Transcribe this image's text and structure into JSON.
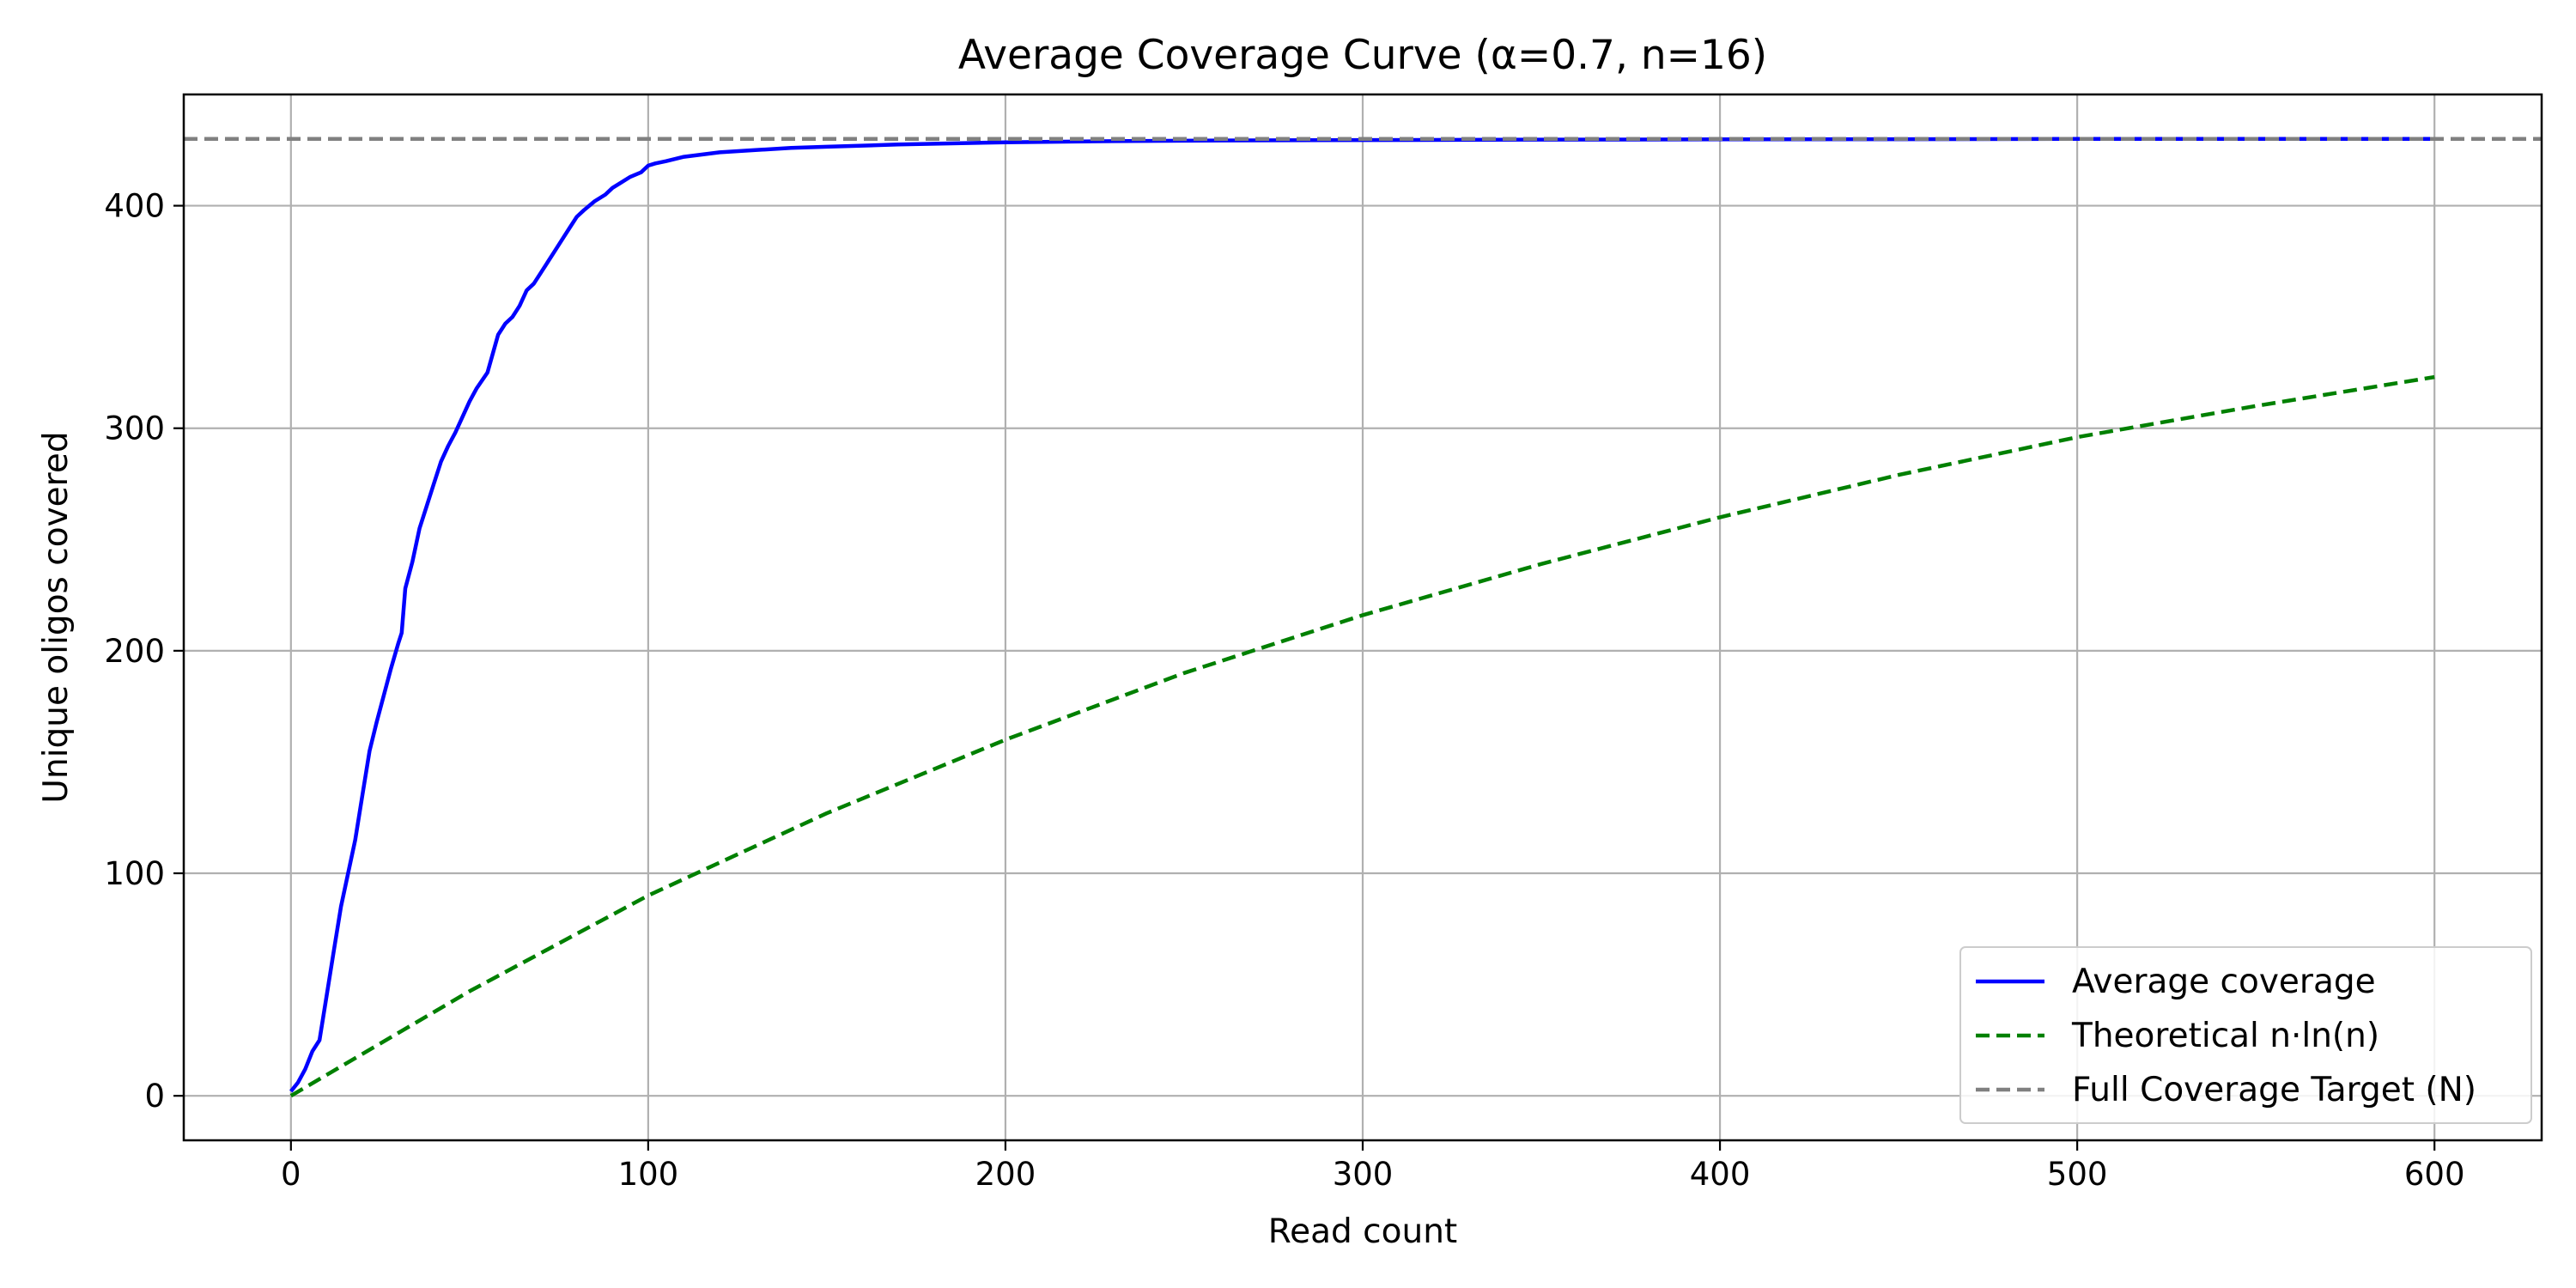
{
  "chart_data": {
    "type": "line",
    "title": "Average Coverage Curve (α=0.7, n=16)",
    "xlabel": "Read count",
    "ylabel": "Unique oligos covered",
    "xlim": [
      -30,
      630
    ],
    "ylim": [
      -20,
      450
    ],
    "x_ticks": [
      0,
      100,
      200,
      300,
      400,
      500,
      600
    ],
    "y_ticks": [
      0,
      100,
      200,
      300,
      400
    ],
    "grid": true,
    "legend_position": "bottom-right",
    "series": [
      {
        "name": "Average coverage",
        "style": "solid",
        "color": "#0000ff",
        "x": [
          0,
          2,
          4,
          6,
          8,
          10,
          12,
          14,
          16,
          18,
          20,
          22,
          24,
          26,
          28,
          30,
          31,
          32,
          34,
          36,
          38,
          40,
          42,
          44,
          46,
          48,
          50,
          52,
          55,
          58,
          60,
          62,
          64,
          66,
          68,
          70,
          72,
          74,
          76,
          78,
          80,
          82,
          85,
          88,
          90,
          92,
          95,
          98,
          100,
          102,
          105,
          110,
          115,
          120,
          130,
          140,
          150,
          170,
          200,
          230,
          260,
          300,
          350,
          400,
          450,
          500,
          550,
          600
        ],
        "y": [
          2,
          6,
          12,
          20,
          25,
          45,
          65,
          85,
          100,
          115,
          135,
          155,
          168,
          180,
          192,
          203,
          208,
          228,
          240,
          255,
          265,
          275,
          285,
          292,
          298,
          305,
          312,
          318,
          325,
          342,
          347,
          350,
          355,
          362,
          365,
          370,
          375,
          380,
          385,
          390,
          395,
          398,
          402,
          405,
          408,
          410,
          413,
          415,
          418,
          419,
          420,
          422,
          423,
          424,
          425,
          426,
          426.5,
          427.5,
          428.5,
          429,
          429.3,
          429.5,
          429.7,
          429.8,
          429.9,
          430,
          430,
          430
        ]
      },
      {
        "name": "Theoretical n·ln(n)",
        "style": "dashed",
        "color": "#008000",
        "x": [
          0,
          50,
          100,
          150,
          200,
          250,
          300,
          350,
          400,
          450,
          500,
          550,
          600
        ],
        "y": [
          0,
          47,
          90,
          127,
          160,
          190,
          216,
          239,
          260,
          279,
          296,
          310,
          323
        ]
      },
      {
        "name": "Full Coverage Target (N)",
        "style": "dashed",
        "color": "#808080",
        "x": [
          -30,
          630
        ],
        "y": [
          430,
          430
        ]
      }
    ]
  }
}
